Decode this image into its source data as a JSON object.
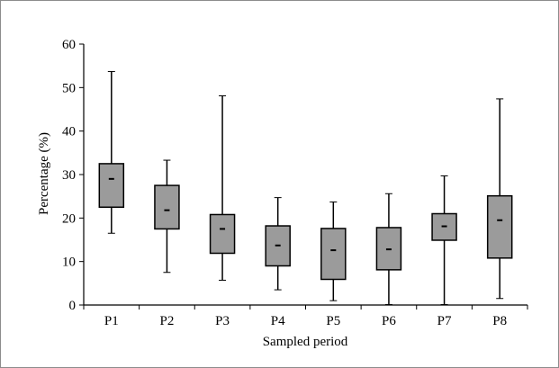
{
  "chart_data": {
    "type": "box",
    "xlabel": "Sampled period",
    "ylabel": "Percentage (%)",
    "ylim": [
      0,
      60
    ],
    "yticks": [
      0,
      10,
      20,
      30,
      40,
      50,
      60
    ],
    "grid": false,
    "categories": [
      "P1",
      "P2",
      "P3",
      "P4",
      "P5",
      "P6",
      "P7",
      "P8"
    ],
    "boxes": [
      {
        "label": "P1",
        "min": 16.5,
        "q1": 22.5,
        "median": 29.0,
        "q3": 32.5,
        "max": 53.7
      },
      {
        "label": "P2",
        "min": 7.5,
        "q1": 17.5,
        "median": 21.8,
        "q3": 27.5,
        "max": 33.3
      },
      {
        "label": "P3",
        "min": 5.7,
        "q1": 11.9,
        "median": 17.5,
        "q3": 20.8,
        "max": 48.1
      },
      {
        "label": "P4",
        "min": 3.5,
        "q1": 9.0,
        "median": 13.7,
        "q3": 18.2,
        "max": 24.7
      },
      {
        "label": "P5",
        "min": 1.0,
        "q1": 5.9,
        "median": 12.6,
        "q3": 17.6,
        "max": 23.7
      },
      {
        "label": "P6",
        "min": 0.1,
        "q1": 8.1,
        "median": 12.8,
        "q3": 17.8,
        "max": 25.6
      },
      {
        "label": "P7",
        "min": 0.1,
        "q1": 14.9,
        "median": 18.1,
        "q3": 21.0,
        "max": 29.7
      },
      {
        "label": "P8",
        "min": 1.5,
        "q1": 10.8,
        "median": 19.5,
        "q3": 25.1,
        "max": 47.4
      }
    ],
    "colors": {
      "box_fill": "#9b9b9b",
      "box_stroke": "#000000",
      "whisker": "#000000",
      "axis": "#000000",
      "frame": "#8c8c8c"
    }
  }
}
